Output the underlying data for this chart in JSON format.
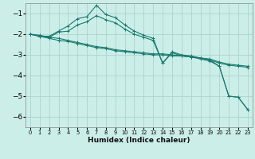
{
  "xlabel": "Humidex (Indice chaleur)",
  "ylabel": "",
  "background_color": "#cceee8",
  "grid_color": "#aad4ce",
  "line_color": "#1a7a6e",
  "xlim": [
    -0.5,
    23.5
  ],
  "ylim": [
    -6.5,
    -0.5
  ],
  "yticks": [
    -6,
    -5,
    -4,
    -3,
    -2,
    -1
  ],
  "xticks": [
    0,
    1,
    2,
    3,
    4,
    5,
    6,
    7,
    8,
    9,
    10,
    11,
    12,
    13,
    14,
    15,
    16,
    17,
    18,
    19,
    20,
    21,
    22,
    23
  ],
  "series": [
    {
      "x": [
        0,
        1,
        2,
        3,
        4,
        5,
        6,
        7,
        8,
        9,
        10,
        11,
        12,
        13,
        14,
        15,
        16,
        17,
        18,
        19,
        20,
        21,
        22,
        23
      ],
      "y": [
        -2.0,
        -2.1,
        -2.1,
        -1.85,
        -1.6,
        -1.25,
        -1.15,
        -0.6,
        -1.05,
        -1.2,
        -1.55,
        -1.85,
        -2.05,
        -2.2,
        -3.4,
        -2.85,
        -3.0,
        -3.05,
        -3.15,
        -3.25,
        -3.55,
        -5.0,
        -5.05,
        -5.65
      ]
    },
    {
      "x": [
        0,
        1,
        2,
        3,
        4,
        5,
        6,
        7,
        8,
        9,
        10,
        11,
        12,
        13,
        14,
        15,
        16,
        17,
        18,
        19,
        20,
        21,
        22,
        23
      ],
      "y": [
        -2.0,
        -2.1,
        -2.15,
        -1.9,
        -1.85,
        -1.55,
        -1.4,
        -1.1,
        -1.3,
        -1.45,
        -1.75,
        -2.0,
        -2.15,
        -2.3,
        -3.4,
        -2.9,
        -3.05,
        -3.1,
        -3.2,
        -3.3,
        -3.55,
        -5.0,
        -5.05,
        -5.65
      ]
    },
    {
      "x": [
        0,
        1,
        2,
        3,
        4,
        5,
        6,
        7,
        8,
        9,
        10,
        11,
        12,
        13,
        14,
        15,
        16,
        17,
        18,
        19,
        20,
        21,
        22,
        23
      ],
      "y": [
        -2.0,
        -2.05,
        -2.15,
        -2.2,
        -2.3,
        -2.4,
        -2.5,
        -2.6,
        -2.65,
        -2.75,
        -2.8,
        -2.85,
        -2.9,
        -2.95,
        -2.95,
        -3.0,
        -3.05,
        -3.1,
        -3.15,
        -3.2,
        -3.35,
        -3.45,
        -3.5,
        -3.55
      ]
    },
    {
      "x": [
        0,
        1,
        2,
        3,
        4,
        5,
        6,
        7,
        8,
        9,
        10,
        11,
        12,
        13,
        14,
        15,
        16,
        17,
        18,
        19,
        20,
        21,
        22,
        23
      ],
      "y": [
        -2.0,
        -2.1,
        -2.2,
        -2.3,
        -2.35,
        -2.45,
        -2.55,
        -2.65,
        -2.7,
        -2.8,
        -2.85,
        -2.9,
        -2.95,
        -3.0,
        -3.0,
        -3.05,
        -3.05,
        -3.1,
        -3.15,
        -3.25,
        -3.4,
        -3.5,
        -3.55,
        -3.6
      ]
    }
  ]
}
